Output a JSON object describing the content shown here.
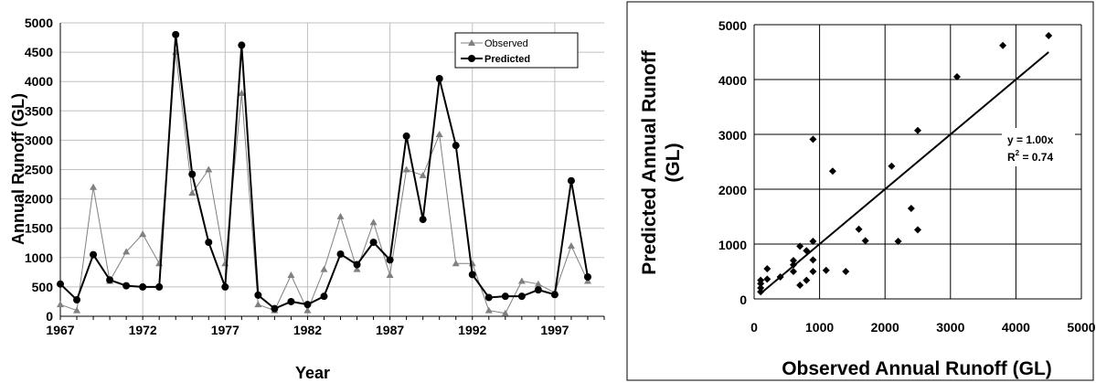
{
  "chart_data": [
    {
      "type": "line",
      "title": "",
      "xlabel": "Year",
      "ylabel": "Annual Runoff (GL)",
      "xlim": [
        1967,
        2000
      ],
      "ylim": [
        0,
        5000
      ],
      "x_ticks": [
        "1967",
        "1972",
        "1977",
        "1982",
        "1987",
        "1992",
        "1997"
      ],
      "y_ticks": [
        "0",
        "500",
        "1000",
        "1500",
        "2000",
        "2500",
        "3000",
        "3500",
        "4000",
        "4500",
        "5000"
      ],
      "grid": true,
      "legend_position": "top-right",
      "x": [
        1967,
        1968,
        1969,
        1970,
        1971,
        1972,
        1973,
        1974,
        1975,
        1976,
        1977,
        1978,
        1979,
        1980,
        1981,
        1982,
        1983,
        1984,
        1985,
        1986,
        1987,
        1988,
        1989,
        1990,
        1991,
        1992,
        1993,
        1994,
        1995,
        1996,
        1997,
        1998,
        1999
      ],
      "series": [
        {
          "name": "Observed",
          "color": "#808080",
          "marker": "triangle",
          "values": [
            200,
            100,
            2200,
            600,
            1100,
            1400,
            900,
            4500,
            2100,
            2500,
            900,
            3800,
            200,
            100,
            700,
            100,
            800,
            1700,
            800,
            1600,
            700,
            2500,
            2400,
            3100,
            900,
            900,
            100,
            50,
            600,
            550,
            400,
            1200,
            600
          ]
        },
        {
          "name": "Predicted",
          "color": "#000000",
          "marker": "circle",
          "values": [
            550,
            280,
            1050,
            620,
            520,
            500,
            500,
            4800,
            2420,
            1260,
            500,
            4620,
            360,
            130,
            250,
            200,
            340,
            1060,
            880,
            1260,
            960,
            3070,
            1650,
            4050,
            2910,
            710,
            320,
            340,
            340,
            450,
            370,
            2310,
            670
          ]
        }
      ]
    },
    {
      "type": "scatter",
      "title": "",
      "xlabel": "Observed Annual Runoff (GL)",
      "ylabel_line1": "Predicted Annual Runoff",
      "ylabel_line2": "(GL)",
      "xlim": [
        0,
        5000
      ],
      "ylim": [
        0,
        5000
      ],
      "x_ticks": [
        "0",
        "1000",
        "2000",
        "3000",
        "4000",
        "5000"
      ],
      "y_ticks": [
        "0",
        "1000",
        "2000",
        "3000",
        "4000",
        "5000"
      ],
      "grid": true,
      "marker": "diamond",
      "points": [
        [
          100,
          280
        ],
        [
          100,
          200
        ],
        [
          100,
          130
        ],
        [
          100,
          340
        ],
        [
          200,
          360
        ],
        [
          200,
          550
        ],
        [
          400,
          400
        ],
        [
          600,
          700
        ],
        [
          600,
          620
        ],
        [
          600,
          500
        ],
        [
          700,
          250
        ],
        [
          700,
          960
        ],
        [
          800,
          340
        ],
        [
          800,
          880
        ],
        [
          900,
          1050
        ],
        [
          900,
          500
        ],
        [
          900,
          710
        ],
        [
          900,
          2910
        ],
        [
          1100,
          520
        ],
        [
          1200,
          2330
        ],
        [
          1400,
          500
        ],
        [
          1600,
          1270
        ],
        [
          1700,
          1060
        ],
        [
          2100,
          2420
        ],
        [
          2200,
          1050
        ],
        [
          2400,
          1650
        ],
        [
          2500,
          3070
        ],
        [
          2500,
          1260
        ],
        [
          3100,
          4050
        ],
        [
          3800,
          4620
        ],
        [
          4500,
          4800
        ]
      ],
      "trendline": {
        "slope": 1.0,
        "x_range": [
          100,
          4500
        ]
      },
      "equation": "y = 1.00x",
      "r2_prefix": "R",
      "r2_sup": "2",
      "r2_value": " = 0.74"
    }
  ]
}
